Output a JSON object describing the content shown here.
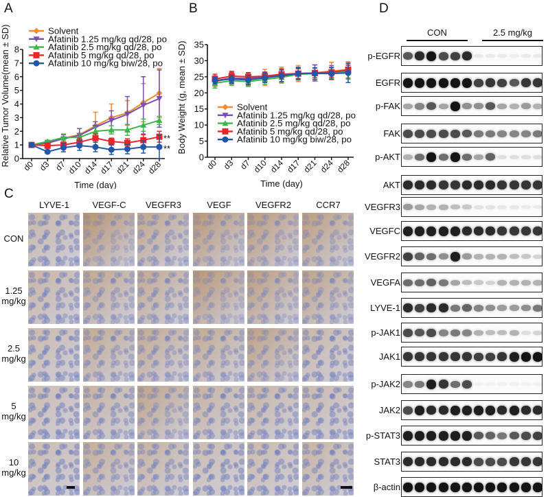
{
  "panels": {
    "A": {
      "letter": "A"
    },
    "B": {
      "letter": "B"
    },
    "C": {
      "letter": "C"
    },
    "D": {
      "letter": "D"
    }
  },
  "legend": [
    {
      "label": "Solvent",
      "color": "#f28a2e",
      "marker": "diamond"
    },
    {
      "label": "Afatinib 1.25 mg/kg qd/28, po",
      "color": "#7b4fb0",
      "marker": "triangle-down"
    },
    {
      "label": "Afatinib 2.5 mg/kg qd/28, po",
      "color": "#3cb54a",
      "marker": "triangle-up"
    },
    {
      "label": "Afatinib 5 mg/kg qd/28, po",
      "color": "#e8262b",
      "marker": "square"
    },
    {
      "label": "Afatinib 10 mg/kg biw/28, po",
      "color": "#2356a8",
      "marker": "circle"
    }
  ],
  "chart_data": [
    {
      "panel": "A",
      "type": "line",
      "title": "",
      "xlabel": "Time (day)",
      "ylabel": "Relative Tumor Volume(mean ± SD)",
      "categories": [
        "d0",
        "d3",
        "d7",
        "d10",
        "d14",
        "d17",
        "d21",
        "d24",
        "d28"
      ],
      "yticks": [
        0,
        1,
        2,
        3,
        4,
        5,
        6,
        7,
        8
      ],
      "ylim": [
        0,
        8
      ],
      "grid": false,
      "legend_position": "top-left",
      "annotations": [
        {
          "text": "**",
          "series": "Afatinib 5 mg/kg qd/28, po",
          "x": "d28"
        },
        {
          "text": "**",
          "series": "Afatinib 10 mg/kg biw/28, po",
          "x": "d28"
        }
      ],
      "series": [
        {
          "name": "Solvent",
          "values": [
            1.0,
            1.1,
            1.5,
            1.75,
            2.4,
            3.0,
            3.35,
            4.1,
            4.8
          ],
          "sd": [
            0.05,
            0.15,
            0.3,
            0.45,
            1.0,
            1.0,
            0.9,
            1.4,
            1.8
          ]
        },
        {
          "name": "Afatinib 1.25 mg/kg qd/28, po",
          "values": [
            1.0,
            1.15,
            1.45,
            1.7,
            2.3,
            2.8,
            3.25,
            3.9,
            4.4
          ],
          "sd": [
            0.05,
            0.15,
            0.3,
            0.5,
            0.4,
            0.7,
            1.3,
            2.1,
            2.1
          ]
        },
        {
          "name": "Afatinib 2.5 mg/kg qd/28, po",
          "values": [
            1.0,
            1.25,
            1.55,
            1.55,
            2.0,
            2.1,
            2.1,
            2.45,
            2.8
          ],
          "sd": [
            0.05,
            0.1,
            0.25,
            0.25,
            0.3,
            0.3,
            0.4,
            0.45,
            0.3
          ]
        },
        {
          "name": "Afatinib 5 mg/kg qd/28, po",
          "values": [
            1.0,
            0.95,
            1.0,
            1.2,
            1.5,
            1.25,
            1.15,
            1.35,
            1.6
          ],
          "sd": [
            0.05,
            0.2,
            0.2,
            0.3,
            0.3,
            0.25,
            0.3,
            0.4,
            0.4
          ]
        },
        {
          "name": "Afatinib 10 mg/kg biw/28, po",
          "values": [
            1.0,
            0.5,
            0.8,
            0.95,
            0.85,
            0.65,
            0.7,
            0.85,
            0.85
          ],
          "sd": [
            0.05,
            0.1,
            0.3,
            0.35,
            0.35,
            0.35,
            0.35,
            0.45,
            0.85
          ]
        }
      ]
    },
    {
      "panel": "B",
      "type": "line",
      "title": "",
      "xlabel": "Time (day)",
      "ylabel": "Body Weight (g, mean ± SD)",
      "categories": [
        "d0",
        "d3",
        "d7",
        "d10",
        "d14",
        "d17",
        "d21",
        "d24",
        "d28"
      ],
      "yticks": [
        0,
        5,
        10,
        15,
        20,
        25,
        30,
        35
      ],
      "ylim": [
        0,
        35
      ],
      "grid": false,
      "legend_position": "lower-left",
      "series": [
        {
          "name": "Solvent",
          "values": [
            23.5,
            24.5,
            24.3,
            24.8,
            25.5,
            26.0,
            26.2,
            26.8,
            27.2
          ],
          "sd": [
            1.5,
            1.8,
            2.0,
            2.5,
            2.5,
            2.5,
            2.5,
            2.7,
            2.5
          ]
        },
        {
          "name": "Afatinib 1.25 mg/kg qd/28, po",
          "values": [
            23.8,
            24.6,
            24.5,
            25.0,
            25.5,
            26.0,
            26.2,
            26.5,
            26.8
          ],
          "sd": [
            1.5,
            1.8,
            1.8,
            1.5,
            2.0,
            2.0,
            2.5,
            2.0,
            2.5
          ]
        },
        {
          "name": "Afatinib 2.5 mg/kg qd/28, po",
          "values": [
            23.0,
            23.8,
            23.5,
            24.2,
            24.8,
            25.8,
            26.0,
            26.2,
            26.5
          ],
          "sd": [
            1.5,
            1.5,
            1.5,
            1.5,
            1.5,
            1.8,
            1.8,
            1.8,
            2.0
          ]
        },
        {
          "name": "Afatinib 5 mg/kg qd/28, po",
          "values": [
            24.3,
            25.2,
            25.0,
            25.2,
            25.8,
            26.0,
            26.2,
            26.4,
            27.2
          ],
          "sd": [
            1.5,
            1.5,
            1.2,
            1.2,
            1.5,
            1.5,
            1.5,
            1.5,
            1.5
          ]
        },
        {
          "name": "Afatinib 10 mg/kg biw/28, po",
          "values": [
            23.8,
            24.3,
            24.0,
            24.7,
            25.3,
            26.0,
            26.0,
            26.0,
            26.2
          ],
          "sd": [
            1.0,
            1.2,
            1.5,
            1.5,
            1.8,
            1.8,
            1.8,
            1.8,
            3.0
          ]
        }
      ]
    }
  ],
  "ihc": {
    "columns": [
      "LYVE-1",
      "VEGF-C",
      "VEGFR3",
      "VEGF",
      "VEGFR2",
      "CCR7"
    ],
    "rows": [
      {
        "line1": "CON",
        "line2": ""
      },
      {
        "line1": "1.25",
        "line2": "mg/kg"
      },
      {
        "line1": "2.5",
        "line2": "mg/kg"
      },
      {
        "line1": "5",
        "line2": "mg/kg"
      },
      {
        "line1": "10",
        "line2": "mg/kg"
      }
    ],
    "stain_intensity": [
      [
        0.25,
        0.85,
        0.55,
        0.8,
        0.75,
        0.7
      ],
      [
        0.3,
        0.55,
        0.5,
        0.8,
        0.7,
        0.6
      ],
      [
        0.2,
        0.5,
        0.5,
        0.5,
        0.65,
        0.25
      ],
      [
        0.15,
        0.35,
        0.6,
        0.35,
        0.3,
        0.2
      ],
      [
        0.15,
        0.45,
        0.35,
        0.15,
        0.2,
        0.3
      ]
    ]
  },
  "western_blot": {
    "groups": [
      {
        "label": "CON",
        "lanes": 6
      },
      {
        "label": "2.5 mg/kg",
        "lanes": 6
      }
    ],
    "rows": [
      {
        "label": "p-EGFR",
        "intensity": [
          0.7,
          0.9,
          1.0,
          0.75,
          0.8,
          0.9,
          0.05,
          0.05,
          0.05,
          0.03,
          0.05,
          0.05
        ]
      },
      {
        "label": "EGFR",
        "intensity": [
          1,
          1,
          1,
          1,
          1,
          1,
          0.8,
          0.85,
          0.8,
          0.7,
          0.85,
          0.85
        ]
      },
      {
        "label": "p-FAK",
        "intensity": [
          0.35,
          0.5,
          0.7,
          0.35,
          1.0,
          0.45,
          0.45,
          0.7,
          0.35,
          0.3,
          0.4,
          0.3
        ]
      },
      {
        "label": "FAK",
        "intensity": [
          0.75,
          0.75,
          0.75,
          0.75,
          0.75,
          0.7,
          0.55,
          0.55,
          0.5,
          0.5,
          0.5,
          0.55
        ]
      },
      {
        "label": "p-AKT",
        "intensity": [
          0.3,
          0.6,
          1.0,
          0.6,
          1.0,
          0.6,
          0.35,
          0.65,
          0.1,
          0.1,
          0.1,
          0.1
        ]
      },
      {
        "label": "AKT",
        "intensity": [
          0.9,
          0.9,
          0.9,
          0.85,
          0.85,
          0.9,
          0.9,
          0.9,
          0.85,
          0.85,
          0.85,
          0.85
        ]
      },
      {
        "label": "VEGFR3",
        "intensity": [
          0.4,
          0.35,
          0.3,
          0.3,
          0.25,
          0.2,
          0.08,
          0.08,
          0.06,
          0.06,
          0.05,
          0.05
        ]
      },
      {
        "label": "VEGFC",
        "intensity": [
          0.95,
          0.95,
          0.95,
          0.95,
          0.95,
          0.9,
          0.9,
          0.9,
          0.85,
          0.85,
          0.85,
          0.85
        ]
      },
      {
        "label": "VEGFR2",
        "intensity": [
          0.8,
          0.65,
          0.6,
          0.45,
          0.95,
          0.4,
          0.3,
          0.3,
          0.3,
          0.25,
          0.2,
          0.15
        ]
      },
      {
        "label": "VEGFA",
        "intensity": [
          0.6,
          0.6,
          0.65,
          0.55,
          0.35,
          0.25,
          0.2,
          0.15,
          0.3,
          0.3,
          0.3,
          0.3
        ]
      },
      {
        "label": "LYVE-1",
        "intensity": [
          0.9,
          0.8,
          0.9,
          0.9,
          0.55,
          0.65,
          0.5,
          0.45,
          0.4,
          0.4,
          0.45,
          0.55
        ]
      },
      {
        "label": "p-JAK1",
        "intensity": [
          0.75,
          0.7,
          0.75,
          0.5,
          0.55,
          0.5,
          0.3,
          0.25,
          0.25,
          0.3,
          0.1,
          0.15
        ]
      },
      {
        "label": "JAK1",
        "intensity": [
          0.85,
          0.85,
          0.85,
          0.85,
          0.85,
          0.85,
          0.8,
          0.8,
          0.85,
          0.95,
          1.0,
          1.0
        ]
      },
      {
        "label": "p-JAK2",
        "intensity": [
          0.5,
          0.55,
          0.95,
          0.85,
          0.6,
          0.75,
          0.02,
          0.02,
          0.02,
          0.02,
          0.02,
          0.02
        ]
      },
      {
        "label": "JAK2",
        "intensity": [
          0.75,
          0.95,
          0.9,
          0.9,
          0.95,
          0.95,
          0.95,
          0.95,
          0.9,
          0.95,
          0.9,
          0.9
        ]
      },
      {
        "label": "p-STAT3",
        "intensity": [
          0.95,
          0.95,
          0.95,
          0.95,
          0.95,
          0.95,
          0.7,
          0.65,
          0.55,
          0.7,
          0.75,
          0.8
        ]
      },
      {
        "label": "STAT3",
        "intensity": [
          0.9,
          0.9,
          0.9,
          0.9,
          0.9,
          0.9,
          0.75,
          0.75,
          0.75,
          0.85,
          0.85,
          0.85
        ]
      },
      {
        "label": "β-actin",
        "intensity": [
          1,
          1,
          1,
          1,
          1,
          1,
          1,
          1,
          1,
          1,
          1,
          1
        ]
      }
    ]
  }
}
